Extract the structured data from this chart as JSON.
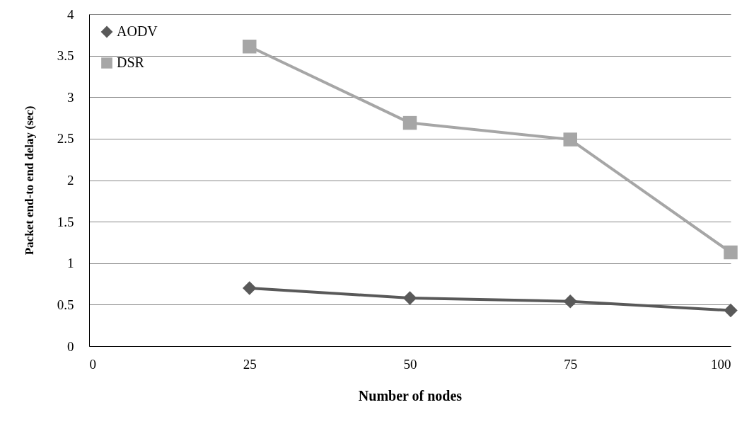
{
  "chart_data": {
    "type": "line",
    "xlabel": "Number of nodes",
    "ylabel": "Packet end-to end delay (sec)",
    "x": [
      25,
      50,
      75,
      100
    ],
    "series": [
      {
        "name": "AODV",
        "color": "#595959",
        "marker": "diamond",
        "values": [
          0.7,
          0.58,
          0.54,
          0.43
        ]
      },
      {
        "name": "DSR",
        "color": "#a6a6a6",
        "marker": "square",
        "values": [
          3.61,
          2.69,
          2.49,
          1.13
        ]
      }
    ],
    "xlim": [
      0,
      100
    ],
    "xticks": [
      0,
      25,
      50,
      75,
      100
    ],
    "ylim": [
      0,
      4
    ],
    "yticks": [
      0,
      0.5,
      1,
      1.5,
      2,
      2.5,
      3,
      3.5,
      4
    ],
    "grid": "y",
    "legend": "top left",
    "line_style": "solid"
  }
}
